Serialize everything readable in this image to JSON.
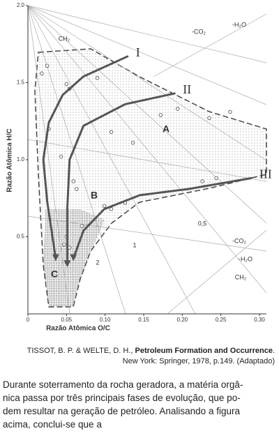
{
  "chart_data": {
    "type": "line",
    "x_label": "Razão Atômica O/C",
    "y_label": "Razão Atômica H/C",
    "xlim": [
      0,
      0.3
    ],
    "ylim": [
      0,
      2
    ],
    "xticks": [
      0,
      0.05,
      {
        "value": 0.1,
        "label": "0.10"
      },
      0.15,
      {
        "value": 0.2,
        "label": "0.20"
      },
      0.25,
      {
        "value": 0.3,
        "label": "0.30"
      }
    ],
    "yticks": [
      0.5,
      {
        "value": 1,
        "label": "1.0"
      },
      1.5,
      {
        "value": 2,
        "label": "2.0"
      }
    ],
    "series": [
      {
        "name": "I",
        "color": "#555555",
        "x": [
          0.129,
          0.072,
          0.045,
          0.027,
          0.02,
          0.025,
          0.036
        ],
        "values": [
          1.67,
          1.54,
          1.42,
          1.24,
          1.0,
          0.73,
          0.36
        ]
      },
      {
        "name": "II",
        "color": "#555555",
        "x": [
          0.19,
          0.126,
          0.072,
          0.054,
          0.051,
          0.051
        ],
        "values": [
          1.43,
          1.36,
          1.22,
          1.0,
          0.68,
          0.32
        ]
      },
      {
        "name": "III",
        "color": "#555555",
        "x": [
          0.289,
          0.208,
          0.145,
          0.099,
          0.072,
          0.059
        ],
        "values": [
          0.88,
          0.81,
          0.77,
          0.68,
          0.54,
          0.36
        ]
      }
    ],
    "samples": {
      "x": [
        0.018,
        0.025,
        0.05,
        0.054,
        0.09,
        0.108,
        0.136,
        0.172,
        0.194,
        0.235,
        0.262,
        0.226,
        0.244,
        0.126,
        0.108,
        0.099,
        0.059,
        0.063,
        0.043,
        0.05,
        0.047,
        0.054,
        0.07,
        0.027
      ],
      "y": [
        1.56,
        1.61,
        1.49,
        1.46,
        1.53,
        1.18,
        1.11,
        1.29,
        1.33,
        1.27,
        1.31,
        0.86,
        0.88,
        0.72,
        0.68,
        0.7,
        0.86,
        0.81,
        1.02,
        0.5,
        0.45,
        0.43,
        0.57,
        1.2
      ]
    },
    "annotations": [
      "A",
      "B",
      "C",
      "CH₂",
      "-CO₂",
      "-H₂O",
      "-CO₂",
      "-H₂O",
      "CH₂",
      "0,5",
      "1",
      "2"
    ]
  },
  "caption": [
    "TISSOT, B. P. & WELTE, D. H., ",
    "Petroleum Formation and Occurrence",
    ". New York: Springer, 1978, p.149. (Adaptado)"
  ],
  "question": [
    "Durante soterramento da rocha geradora, a matéria orgâ-",
    "nica passa por três principais fases de evolução, que po-",
    "dem resultar na geração de petróleo.  Analisando a figura",
    "acima, conclui-se que a"
  ]
}
